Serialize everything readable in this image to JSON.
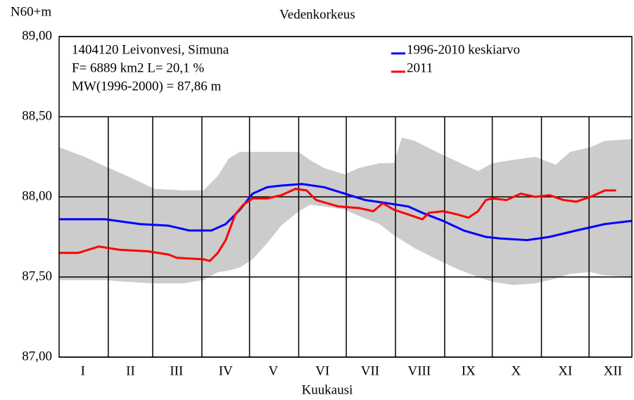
{
  "chart_data": {
    "type": "line",
    "title": "Vedenkorkeus",
    "ylabel": "N60+m",
    "xlabel": "Kuukausi",
    "info": [
      "1404120 Leivonvesi, Simuna",
      "F=   6889 km2 L=  20,1 %",
      "MW(1996-2000) = 87,86 m"
    ],
    "xlim": [
      0,
      361
    ],
    "ylim": [
      87,
      89
    ],
    "yticks": [
      {
        "value": 89,
        "label": "89,00"
      },
      {
        "value": 88.5,
        "label": "88,50"
      },
      {
        "value": 88,
        "label": "88,00"
      },
      {
        "value": 87.5,
        "label": "87,50"
      },
      {
        "value": 87,
        "label": "87,00"
      }
    ],
    "xticks": [
      {
        "value": 15,
        "label": "I"
      },
      {
        "value": 45,
        "label": "II"
      },
      {
        "value": 74,
        "label": "III"
      },
      {
        "value": 105,
        "label": "IV"
      },
      {
        "value": 135,
        "label": "V"
      },
      {
        "value": 166,
        "label": "VI"
      },
      {
        "value": 196,
        "label": "VII"
      },
      {
        "value": 227,
        "label": "VIII"
      },
      {
        "value": 258,
        "label": "IX"
      },
      {
        "value": 288,
        "label": "X"
      },
      {
        "value": 319,
        "label": "XI"
      },
      {
        "value": 349,
        "label": "XII"
      }
    ],
    "xgrid": [
      31,
      59,
      90,
      120,
      151,
      181,
      212,
      243,
      273,
      304,
      334
    ],
    "band": {
      "color": "#cccccc",
      "x": [
        0,
        16,
        29,
        43,
        60,
        78,
        91,
        100,
        107,
        114,
        122,
        131,
        140,
        151,
        158,
        167,
        180,
        189,
        202,
        211,
        216,
        224,
        238,
        251,
        264,
        273,
        286,
        300,
        313,
        322,
        335,
        344,
        361
      ],
      "upper": [
        88.31,
        88.25,
        88.19,
        88.13,
        88.05,
        88.04,
        88.04,
        88.13,
        88.24,
        88.28,
        88.28,
        88.28,
        88.28,
        88.28,
        88.23,
        88.18,
        88.14,
        88.18,
        88.21,
        88.21,
        88.37,
        88.35,
        88.28,
        88.22,
        88.16,
        88.21,
        88.23,
        88.25,
        88.2,
        88.28,
        88.31,
        88.35,
        88.36
      ],
      "lower": [
        87.48,
        87.48,
        87.48,
        87.47,
        87.46,
        87.46,
        87.48,
        87.53,
        87.54,
        87.56,
        87.61,
        87.71,
        87.82,
        87.91,
        87.95,
        87.94,
        87.92,
        87.88,
        87.83,
        87.76,
        87.73,
        87.68,
        87.61,
        87.55,
        87.5,
        87.47,
        87.45,
        87.46,
        87.49,
        87.52,
        87.53,
        87.51,
        87.5
      ]
    },
    "series": [
      {
        "name": "1996-2010 keskiarvo",
        "color": "#0000ff",
        "x": [
          0,
          16,
          29,
          51,
          69,
          82,
          96,
          105,
          114,
          122,
          131,
          140,
          153,
          167,
          180,
          193,
          207,
          220,
          229,
          242,
          255,
          269,
          278,
          295,
          309,
          326,
          344,
          361
        ],
        "values": [
          87.86,
          87.86,
          87.86,
          87.83,
          87.82,
          87.79,
          87.79,
          87.83,
          87.92,
          88.02,
          88.06,
          88.07,
          88.08,
          88.06,
          88.02,
          87.98,
          87.96,
          87.94,
          87.9,
          87.85,
          87.79,
          87.75,
          87.74,
          87.73,
          87.75,
          87.79,
          87.83,
          87.85
        ]
      },
      {
        "name": "2011",
        "color": "#ff0000",
        "x": [
          0,
          12,
          25,
          38,
          56,
          69,
          74,
          91,
          95,
          100,
          105,
          111,
          116,
          122,
          131,
          140,
          149,
          156,
          162,
          176,
          189,
          198,
          204,
          211,
          220,
          229,
          233,
          242,
          251,
          258,
          264,
          269,
          273,
          282,
          291,
          300,
          309,
          318,
          326,
          335,
          344,
          351
        ],
        "values": [
          87.65,
          87.65,
          87.69,
          87.67,
          87.66,
          87.64,
          87.62,
          87.61,
          87.6,
          87.65,
          87.73,
          87.89,
          87.95,
          87.99,
          87.99,
          88.01,
          88.05,
          88.04,
          87.98,
          87.94,
          87.93,
          87.91,
          87.96,
          87.92,
          87.89,
          87.86,
          87.9,
          87.91,
          87.89,
          87.87,
          87.91,
          87.98,
          87.99,
          87.98,
          88.02,
          88.0,
          88.01,
          87.98,
          87.97,
          88.0,
          88.04,
          88.04
        ]
      }
    ]
  }
}
